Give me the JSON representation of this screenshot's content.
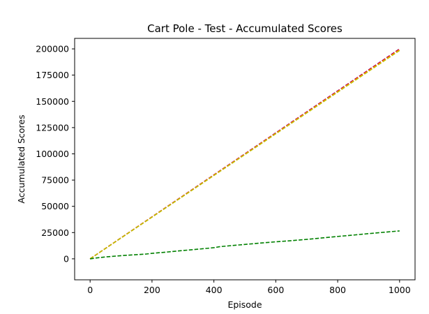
{
  "chart_data": {
    "type": "line",
    "title": "Cart Pole - Test - Accumulated Scores",
    "xlabel": "Episode",
    "ylabel": "Accumulated Scores",
    "xlim": [
      -50,
      1050
    ],
    "ylim": [
      -20000,
      210000
    ],
    "xticks": [
      0,
      200,
      400,
      600,
      800,
      1000
    ],
    "yticks": [
      0,
      25000,
      50000,
      75000,
      100000,
      125000,
      150000,
      175000,
      200000
    ],
    "grid": false,
    "legend": "none",
    "series": [
      {
        "color": "#800080",
        "x": [
          0,
          1000
        ],
        "y": [
          0,
          200000
        ]
      },
      {
        "color": "#ff0000",
        "x": [
          0,
          1000
        ],
        "y": [
          0,
          199500
        ]
      },
      {
        "color": "#ffa500",
        "x": [
          0,
          1000
        ],
        "y": [
          0,
          199000
        ]
      },
      {
        "color": "#bfbf00",
        "x": [
          0,
          1000
        ],
        "y": [
          0,
          198500
        ]
      },
      {
        "color": "#008000",
        "x": [
          0,
          20,
          50,
          100,
          150,
          180,
          200,
          250,
          300,
          350,
          400,
          420,
          450,
          500,
          550,
          600,
          650,
          700,
          750,
          800,
          850,
          900,
          950,
          1000
        ],
        "y": [
          0,
          800,
          1800,
          3000,
          4000,
          4500,
          5200,
          6500,
          7900,
          9200,
          10600,
          11600,
          12400,
          13700,
          15000,
          16200,
          17300,
          18500,
          19900,
          21300,
          22600,
          24000,
          25300,
          26600
        ]
      }
    ]
  }
}
